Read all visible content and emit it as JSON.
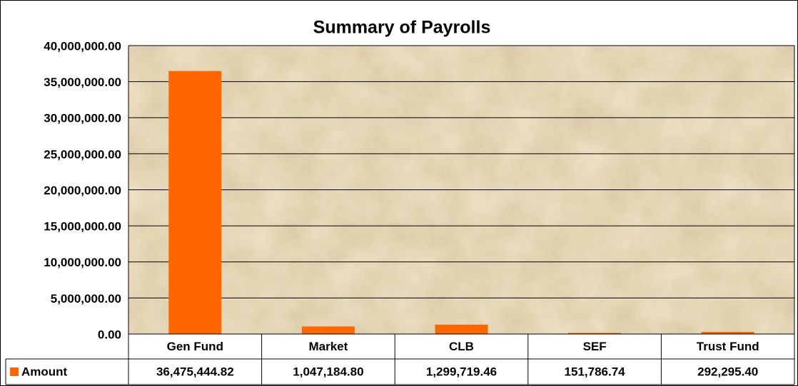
{
  "chart_data": {
    "type": "bar",
    "title": "Summary of Payrolls",
    "categories": [
      "Gen Fund",
      "Market",
      "CLB",
      "SEF",
      "Trust Fund"
    ],
    "series": [
      {
        "name": "Amount",
        "color": "#ff6600",
        "values": [
          36475444.82,
          1047184.8,
          1299719.46,
          151786.74,
          292295.4
        ],
        "value_labels": [
          "36,475,444.82",
          "1,047,184.80",
          "1,299,719.46",
          "151,786.74",
          "292,295.40"
        ]
      }
    ],
    "ylim": [
      0,
      40000000
    ],
    "yticks": [
      {
        "value": 0,
        "label": "0.00"
      },
      {
        "value": 5000000,
        "label": "5,000,000.00"
      },
      {
        "value": 10000000,
        "label": "10,000,000.00"
      },
      {
        "value": 15000000,
        "label": "15,000,000.00"
      },
      {
        "value": 20000000,
        "label": "20,000,000.00"
      },
      {
        "value": 25000000,
        "label": "25,000,000.00"
      },
      {
        "value": 30000000,
        "label": "30,000,000.00"
      },
      {
        "value": 35000000,
        "label": "35,000,000.00"
      },
      {
        "value": 40000000,
        "label": "40,000,000.00"
      }
    ],
    "grid": true
  }
}
